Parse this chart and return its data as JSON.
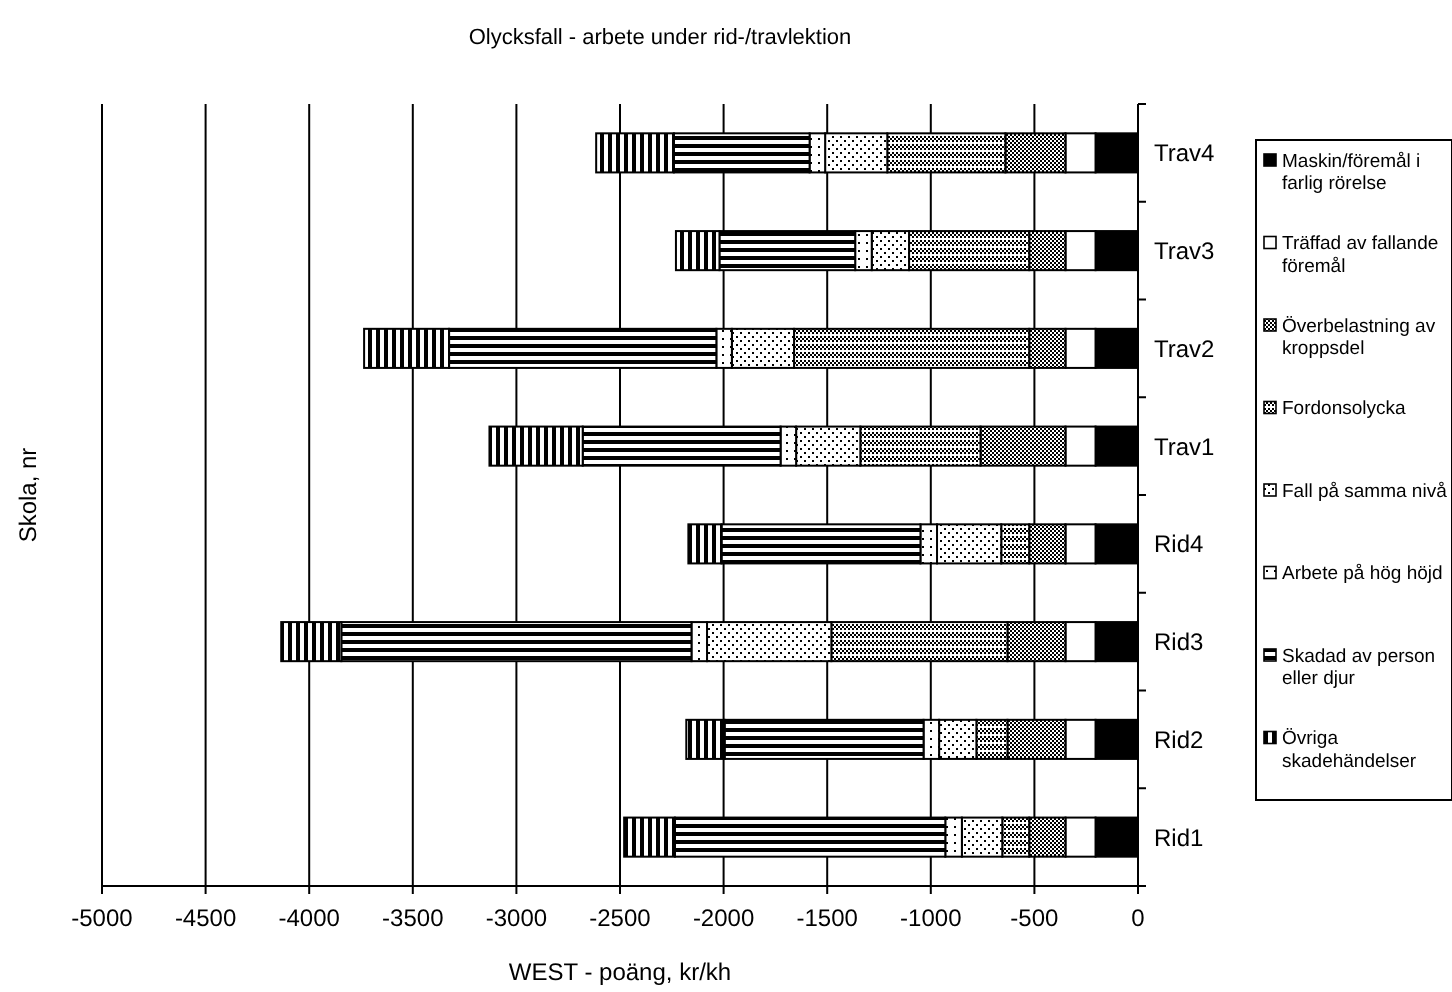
{
  "chart_data": {
    "type": "bar",
    "orientation": "horizontal",
    "stacked": true,
    "title": "Olycksfall - arbete under rid-/travlektion",
    "xlabel": "WEST - poäng, kr/kh",
    "ylabel": "Skola, nr",
    "categories": [
      "Trav4",
      "Trav3",
      "Trav2",
      "Trav1",
      "Rid4",
      "Rid3",
      "Rid2",
      "Rid1"
    ],
    "series": [
      {
        "name": "Maskin/föremål i farlig rörelse",
        "color": "#000000",
        "values": [
          -205,
          -205,
          -205,
          -205,
          -205,
          -205,
          -205,
          -205
        ]
      },
      {
        "name": "Träffad av fallande föremål",
        "color": "#ffffff",
        "values": [
          -145,
          -145,
          -145,
          -145,
          -145,
          -145,
          -145,
          -145
        ]
      },
      {
        "name": "Överbelastning av kroppsdel",
        "color": "#000000",
        "values": [
          -290,
          -175,
          -175,
          -410,
          -175,
          -280,
          -280,
          -175
        ]
      },
      {
        "name": "Fordonsolycka",
        "color": "#000000",
        "values": [
          -570,
          -580,
          -1135,
          -580,
          -135,
          -850,
          -150,
          -130
        ]
      },
      {
        "name": "Fall på samma nivå",
        "color": "#000000",
        "values": [
          -300,
          -180,
          -300,
          -310,
          -310,
          -600,
          -180,
          -195
        ]
      },
      {
        "name": "Arbete på hög höjd",
        "color": "#000000",
        "values": [
          -75,
          -80,
          -75,
          -75,
          -80,
          -75,
          -75,
          -80
        ]
      },
      {
        "name": "Skadad av person eller djur",
        "color": "#000000",
        "values": [
          -655,
          -655,
          -1290,
          -955,
          -960,
          -1690,
          -960,
          -1305
        ]
      },
      {
        "name": "Övriga skadehändelser",
        "color": "#000000",
        "values": [
          -375,
          -210,
          -410,
          -450,
          -160,
          -290,
          -185,
          -245
        ]
      }
    ],
    "xlim": [
      -5000,
      0
    ],
    "xticks": [
      -5000,
      -4500,
      -4000,
      -3500,
      -3000,
      -2500,
      -2000,
      -1500,
      -1000,
      -500,
      0
    ],
    "grid": "x",
    "legend": "right"
  }
}
